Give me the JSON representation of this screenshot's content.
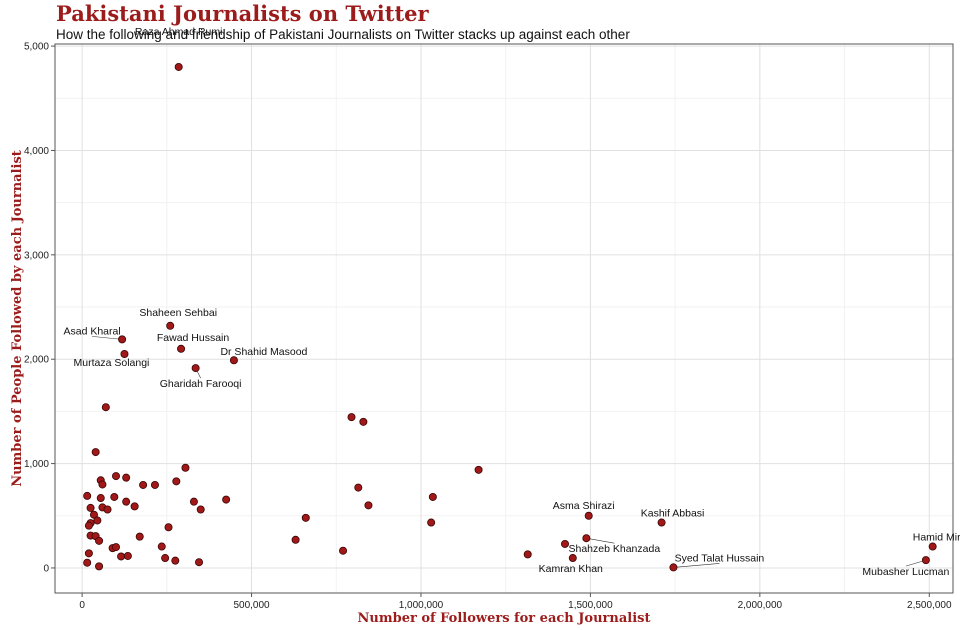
{
  "chart_data": {
    "type": "scatter",
    "title": "Pakistani Journalists on Twitter",
    "subtitle": "How the following and friendship of Pakistani Journalists on Twitter stacks up against each other",
    "xlabel": "Number of Followers for each Journalist",
    "ylabel": "Number of People Followed by each Journalist",
    "xlim": [
      -80000,
      2570000
    ],
    "ylim": [
      -240,
      5020
    ],
    "x_ticks": [
      0,
      500000,
      1000000,
      1500000,
      2000000,
      2500000
    ],
    "x_tick_labels": [
      "0",
      "500,000",
      "1,000,000",
      "1,500,000",
      "2,000,000",
      "2,500,000"
    ],
    "y_ticks": [
      0,
      1000,
      2000,
      3000,
      4000,
      5000
    ],
    "y_tick_labels": [
      "0",
      "1,000",
      "2,000",
      "3,000",
      "4,000",
      "5,000"
    ],
    "grid": true,
    "point_color": "#a01818",
    "labeled_points": [
      {
        "name": "Raza Ahmad Rumi",
        "x": 285000,
        "y": 4800
      },
      {
        "name": "Shaheen Sehbai",
        "x": 260000,
        "y": 2320
      },
      {
        "name": "Asad Kharal",
        "x": 118000,
        "y": 2190
      },
      {
        "name": "Fawad Hussain",
        "x": 292000,
        "y": 2100
      },
      {
        "name": "Murtaza Solangi",
        "x": 125000,
        "y": 2050
      },
      {
        "name": "Dr Shahid Masood",
        "x": 448000,
        "y": 1990
      },
      {
        "name": "Gharidah Farooqi",
        "x": 335000,
        "y": 1915
      },
      {
        "name": "Asma Shirazi",
        "x": 1495000,
        "y": 500
      },
      {
        "name": "Kashif Abbasi",
        "x": 1710000,
        "y": 435
      },
      {
        "name": "Shahzeb Khanzada",
        "x": 1488000,
        "y": 285
      },
      {
        "name": "Kamran Khan",
        "x": 1448000,
        "y": 95
      },
      {
        "name": "Syed Talat Hussain",
        "x": 1745000,
        "y": 5
      },
      {
        "name": "Hamid Mir",
        "x": 2510000,
        "y": 205
      },
      {
        "name": "Mubasher Lucman",
        "x": 2490000,
        "y": 75
      }
    ],
    "unlabeled_points": [
      {
        "x": 70000,
        "y": 1540
      },
      {
        "x": 40000,
        "y": 1110
      },
      {
        "x": 305000,
        "y": 960
      },
      {
        "x": 100000,
        "y": 880
      },
      {
        "x": 130000,
        "y": 865
      },
      {
        "x": 55000,
        "y": 840
      },
      {
        "x": 60000,
        "y": 800
      },
      {
        "x": 278000,
        "y": 830
      },
      {
        "x": 180000,
        "y": 795
      },
      {
        "x": 215000,
        "y": 795
      },
      {
        "x": 15000,
        "y": 690
      },
      {
        "x": 55000,
        "y": 670
      },
      {
        "x": 95000,
        "y": 680
      },
      {
        "x": 130000,
        "y": 635
      },
      {
        "x": 330000,
        "y": 635
      },
      {
        "x": 425000,
        "y": 655
      },
      {
        "x": 155000,
        "y": 590
      },
      {
        "x": 25000,
        "y": 575
      },
      {
        "x": 60000,
        "y": 580
      },
      {
        "x": 75000,
        "y": 560
      },
      {
        "x": 350000,
        "y": 560
      },
      {
        "x": 35000,
        "y": 510
      },
      {
        "x": 45000,
        "y": 455
      },
      {
        "x": 25000,
        "y": 430
      },
      {
        "x": 20000,
        "y": 405
      },
      {
        "x": 255000,
        "y": 390
      },
      {
        "x": 25000,
        "y": 310
      },
      {
        "x": 40000,
        "y": 305
      },
      {
        "x": 50000,
        "y": 260
      },
      {
        "x": 170000,
        "y": 300
      },
      {
        "x": 90000,
        "y": 190
      },
      {
        "x": 100000,
        "y": 200
      },
      {
        "x": 235000,
        "y": 205
      },
      {
        "x": 20000,
        "y": 140
      },
      {
        "x": 115000,
        "y": 110
      },
      {
        "x": 135000,
        "y": 115
      },
      {
        "x": 245000,
        "y": 95
      },
      {
        "x": 275000,
        "y": 70
      },
      {
        "x": 345000,
        "y": 55
      },
      {
        "x": 15000,
        "y": 50
      },
      {
        "x": 50000,
        "y": 15
      },
      {
        "x": 660000,
        "y": 480
      },
      {
        "x": 630000,
        "y": 270
      },
      {
        "x": 770000,
        "y": 165
      },
      {
        "x": 795000,
        "y": 1445
      },
      {
        "x": 830000,
        "y": 1400
      },
      {
        "x": 815000,
        "y": 770
      },
      {
        "x": 845000,
        "y": 600
      },
      {
        "x": 1035000,
        "y": 680
      },
      {
        "x": 1030000,
        "y": 435
      },
      {
        "x": 1170000,
        "y": 940
      },
      {
        "x": 1315000,
        "y": 130
      },
      {
        "x": 1425000,
        "y": 230
      }
    ]
  }
}
